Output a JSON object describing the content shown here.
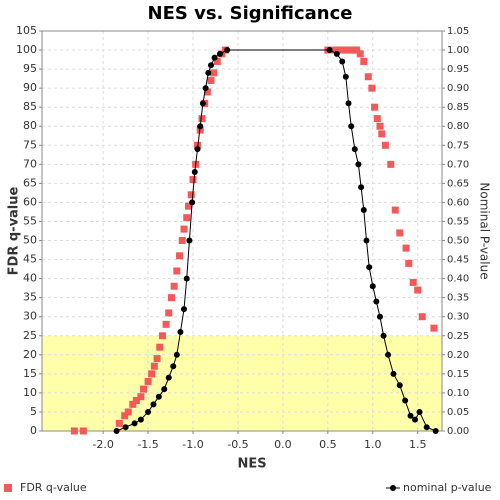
{
  "chart_data": {
    "type": "scatter",
    "title": "NES vs. Significance",
    "x_label": "NES",
    "y_label": "FDR q-value",
    "y2_label": "Nominal P-value",
    "xlim": [
      -2.68,
      1.77
    ],
    "xticks": [
      {
        "value": -2,
        "label": "-2.0"
      },
      {
        "value": -1.5,
        "label": "-1.5"
      },
      {
        "value": -1,
        "label": "-1.0"
      },
      {
        "value": -0.5,
        "label": "-0.5"
      },
      {
        "value": 0,
        "label": "0.0"
      },
      {
        "value": 0.5,
        "label": "0.5"
      },
      {
        "value": 1,
        "label": "1.0"
      },
      {
        "value": 1.5,
        "label": "1.5"
      }
    ],
    "ylim": [
      0,
      105
    ],
    "yticks": [
      0,
      5,
      10,
      15,
      20,
      25,
      30,
      35,
      40,
      45,
      50,
      55,
      60,
      65,
      70,
      75,
      80,
      85,
      90,
      95,
      100,
      105
    ],
    "y2lim": [
      0,
      1.05
    ],
    "y2ticks": [
      {
        "value": 0,
        "label": "0.00"
      },
      {
        "value": 0.05,
        "label": "0.05"
      },
      {
        "value": 0.1,
        "label": "0.10"
      },
      {
        "value": 0.15,
        "label": "0.15"
      },
      {
        "value": 0.2,
        "label": "0.20"
      },
      {
        "value": 0.25,
        "label": "0.25"
      },
      {
        "value": 0.3,
        "label": "0.30"
      },
      {
        "value": 0.35,
        "label": "0.35"
      },
      {
        "value": 0.4,
        "label": "0.40"
      },
      {
        "value": 0.45,
        "label": "0.45"
      },
      {
        "value": 0.5,
        "label": "0.50"
      },
      {
        "value": 0.55,
        "label": "0.55"
      },
      {
        "value": 0.6,
        "label": "0.60"
      },
      {
        "value": 0.65,
        "label": "0.65"
      },
      {
        "value": 0.7,
        "label": "0.70"
      },
      {
        "value": 0.75,
        "label": "0.75"
      },
      {
        "value": 0.8,
        "label": "0.80"
      },
      {
        "value": 0.85,
        "label": "0.85"
      },
      {
        "value": 0.9,
        "label": "0.90"
      },
      {
        "value": 0.95,
        "label": "0.95"
      },
      {
        "value": 1,
        "label": "1.00"
      },
      {
        "value": 1.05,
        "label": "1.05"
      }
    ],
    "shaded_ylim": [
      0,
      25
    ],
    "shade_color": "#ffffaa",
    "grid": true,
    "legend": "bottom",
    "series": [
      {
        "name": "FDR q-value",
        "color": "#f25a5a",
        "marker": "square",
        "x": [
          -2.32,
          -2.22,
          -1.82,
          -1.76,
          -1.72,
          -1.67,
          -1.63,
          -1.58,
          -1.55,
          -1.5,
          -1.46,
          -1.43,
          -1.4,
          -1.37,
          -1.34,
          -1.3,
          -1.27,
          -1.24,
          -1.21,
          -1.18,
          -1.15,
          -1.12,
          -1.1,
          -1.07,
          -1.05,
          -1.02,
          -1.0,
          -0.97,
          -0.95,
          -0.92,
          -0.9,
          -0.87,
          -0.84,
          -0.8,
          -0.77,
          -0.73,
          -0.68,
          -0.64,
          0.5,
          0.58,
          0.62,
          0.66,
          0.7,
          0.74,
          0.78,
          0.82,
          0.86,
          0.9,
          0.95,
          0.99,
          1.02,
          1.05,
          1.08,
          1.1,
          1.14,
          1.2,
          1.25,
          1.3,
          1.37,
          1.4,
          1.45,
          1.5,
          1.55,
          1.68
        ],
        "values": [
          0,
          0,
          2,
          4,
          5,
          7,
          8,
          9,
          11,
          13,
          15,
          17,
          19,
          22,
          25,
          28,
          31,
          35,
          38,
          42,
          46,
          50,
          53,
          56,
          59,
          62,
          66,
          70,
          75,
          79,
          82,
          86,
          89,
          92,
          94,
          97,
          99,
          100,
          100,
          100,
          100,
          100,
          100,
          100,
          100,
          100,
          99,
          97,
          93,
          90,
          85,
          82,
          80,
          78,
          75,
          70,
          58,
          52,
          48,
          44,
          39,
          37,
          30,
          27
        ]
      },
      {
        "name": "nominal p-value",
        "color": "#000000",
        "marker": "circle",
        "line": true,
        "axis": "y2",
        "x": [
          -1.85,
          -1.75,
          -1.65,
          -1.58,
          -1.5,
          -1.44,
          -1.38,
          -1.32,
          -1.27,
          -1.22,
          -1.18,
          -1.14,
          -1.1,
          -1.07,
          -1.04,
          -1.01,
          -0.98,
          -0.95,
          -0.92,
          -0.89,
          -0.86,
          -0.83,
          -0.8,
          -0.76,
          -0.7,
          -0.62,
          0.52,
          0.6,
          0.66,
          0.7,
          0.73,
          0.76,
          0.8,
          0.84,
          0.87,
          0.9,
          0.93,
          0.96,
          1.0,
          1.04,
          1.08,
          1.12,
          1.17,
          1.23,
          1.3,
          1.36,
          1.42,
          1.47,
          1.52,
          1.6,
          1.7
        ],
        "values": [
          0,
          0.01,
          0.02,
          0.03,
          0.05,
          0.07,
          0.09,
          0.11,
          0.14,
          0.17,
          0.2,
          0.26,
          0.32,
          0.4,
          0.5,
          0.6,
          0.68,
          0.74,
          0.8,
          0.86,
          0.9,
          0.94,
          0.96,
          0.98,
          0.99,
          1.0,
          1.0,
          0.99,
          0.97,
          0.93,
          0.86,
          0.8,
          0.74,
          0.7,
          0.64,
          0.58,
          0.5,
          0.43,
          0.38,
          0.34,
          0.3,
          0.25,
          0.2,
          0.15,
          0.12,
          0.08,
          0.04,
          0.03,
          0.05,
          0.01,
          0
        ]
      }
    ]
  }
}
